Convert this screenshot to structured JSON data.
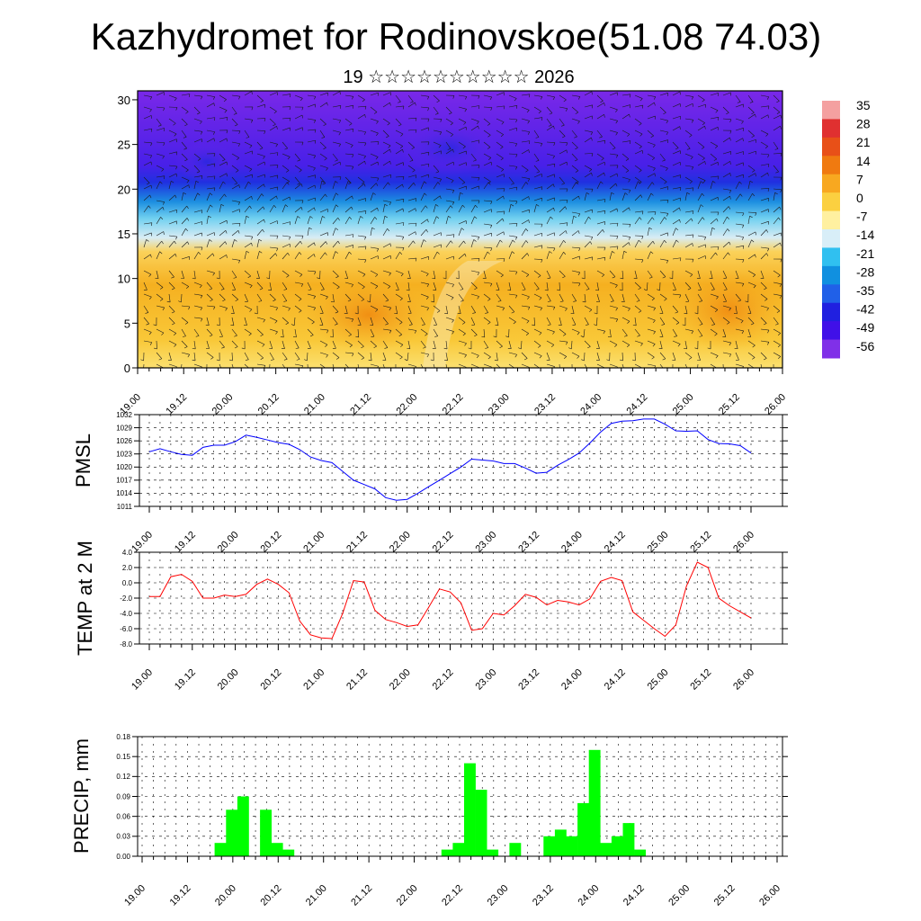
{
  "title": "Kazhydromet for Rodinovskoe(51.08 74.03)",
  "subtitle": "19 ☆☆☆☆☆☆☆☆☆☆ 2026",
  "time_ticks": [
    "19.00",
    "19.12",
    "20.00",
    "20.12",
    "21.00",
    "21.12",
    "22.00",
    "22.12",
    "23.00",
    "23.12",
    "24.00",
    "24.12",
    "25.00",
    "25.12",
    "26.00"
  ],
  "chart_data": [
    {
      "type": "heatmap",
      "name": "cross-section",
      "y_ticks": [
        "0",
        "5",
        "10",
        "15",
        "20",
        "25",
        "30"
      ],
      "ylim": [
        0,
        31
      ],
      "colorbar": {
        "labels": [
          "35",
          "28",
          "21",
          "14",
          "7",
          "0",
          "-7",
          "-14",
          "-21",
          "-28",
          "-35",
          "-42",
          "-49",
          "-56"
        ],
        "colors": [
          "#f4a0a0",
          "#e03030",
          "#e85018",
          "#f07a10",
          "#f8a820",
          "#fbd040",
          "#fff0a0",
          "#d8eef8",
          "#30c0f0",
          "#1090e0",
          "#2060e8",
          "#2020e0",
          "#4010e8",
          "#8030e8"
        ]
      }
    },
    {
      "type": "line",
      "ylabel": "PMSL",
      "y_ticks": [
        "1011",
        "1014",
        "1017",
        "1020",
        "1023",
        "1026",
        "1029",
        "1032"
      ],
      "ylim": [
        1011,
        1032
      ],
      "color": "#0000ff",
      "x": [
        0,
        1,
        2,
        3,
        4,
        5,
        6,
        7,
        8,
        9,
        10,
        11,
        12,
        13,
        14,
        15,
        16,
        17,
        18,
        19,
        20,
        21,
        22,
        23,
        24,
        25,
        26,
        27,
        28,
        29,
        30,
        31,
        32,
        33,
        34,
        35,
        36,
        37,
        38,
        39,
        40,
        41,
        42,
        43,
        44,
        45,
        46,
        47,
        48,
        49,
        50,
        51,
        52,
        53,
        54,
        55,
        56
      ],
      "values": [
        1023.5,
        1024.2,
        1023.5,
        1022.9,
        1022.7,
        1024.5,
        1025.0,
        1025.0,
        1025.8,
        1027.3,
        1026.8,
        1026.2,
        1025.6,
        1025.2,
        1024.0,
        1022.3,
        1021.5,
        1021.0,
        1019.0,
        1017.0,
        1016.0,
        1015.0,
        1013.0,
        1012.4,
        1012.6,
        1014.0,
        1015.5,
        1017.0,
        1018.5,
        1020.0,
        1021.8,
        1021.6,
        1021.4,
        1020.8,
        1020.8,
        1019.8,
        1018.6,
        1018.8,
        1020.4,
        1021.7,
        1023.2,
        1025.5,
        1028.0,
        1030.0,
        1030.5,
        1030.6,
        1031.0,
        1031.0,
        1029.8,
        1028.3,
        1028.2,
        1028.3,
        1026.3,
        1025.4,
        1025.3,
        1024.9,
        1023.2
      ]
    },
    {
      "type": "line",
      "ylabel": "TEMP at 2 M",
      "y_ticks": [
        "-8.0",
        "-6.0",
        "-4.0",
        "-2.0",
        "0.0",
        "2.0",
        "4.0"
      ],
      "ylim": [
        -8,
        4
      ],
      "color": "#ff0000",
      "x": [
        0,
        1,
        2,
        3,
        4,
        5,
        6,
        7,
        8,
        9,
        10,
        11,
        12,
        13,
        14,
        15,
        16,
        17,
        18,
        19,
        20,
        21,
        22,
        23,
        24,
        25,
        26,
        27,
        28,
        29,
        30,
        31,
        32,
        33,
        34,
        35,
        36,
        37,
        38,
        39,
        40,
        41,
        42,
        43,
        44,
        45,
        46,
        47,
        48,
        49,
        50,
        51,
        52,
        53,
        54,
        55,
        56
      ],
      "values": [
        -1.8,
        -1.8,
        0.8,
        1.1,
        0.2,
        -2.0,
        -2.0,
        -1.6,
        -1.8,
        -1.5,
        -0.2,
        0.5,
        -0.2,
        -1.3,
        -5.0,
        -6.8,
        -7.2,
        -7.3,
        -4.0,
        0.3,
        0.1,
        -3.6,
        -4.8,
        -5.2,
        -5.7,
        -5.5,
        -3.2,
        -0.8,
        -1.2,
        -2.6,
        -6.2,
        -6.0,
        -4.0,
        -4.2,
        -3.0,
        -1.5,
        -1.9,
        -2.9,
        -2.3,
        -2.5,
        -2.9,
        -2.1,
        0.2,
        0.7,
        0.3,
        -3.8,
        -4.9,
        -6.0,
        -7.0,
        -5.5,
        -0.4,
        2.7,
        2.0,
        -2.0,
        -3.0,
        -3.8,
        -4.6
      ]
    },
    {
      "type": "bar",
      "ylabel": "PRECIP, mm",
      "y_ticks": [
        "0.00",
        "0.03",
        "0.06",
        "0.09",
        "0.12",
        "0.15",
        "0.18"
      ],
      "ylim": [
        0,
        0.18
      ],
      "color": "#00ff00",
      "x": [
        6,
        7,
        8,
        9,
        10,
        11,
        12,
        13,
        26,
        27,
        28,
        29,
        30,
        32,
        35,
        36,
        37,
        38,
        39,
        40,
        41,
        42,
        43,
        44
      ],
      "values": [
        0.02,
        0.07,
        0.09,
        0.0,
        0.07,
        0.02,
        0.01,
        0.0,
        0.01,
        0.02,
        0.14,
        0.1,
        0.01,
        0.02,
        0.03,
        0.04,
        0.03,
        0.08,
        0.16,
        0.02,
        0.03,
        0.05,
        0.01,
        0.0
      ]
    }
  ]
}
